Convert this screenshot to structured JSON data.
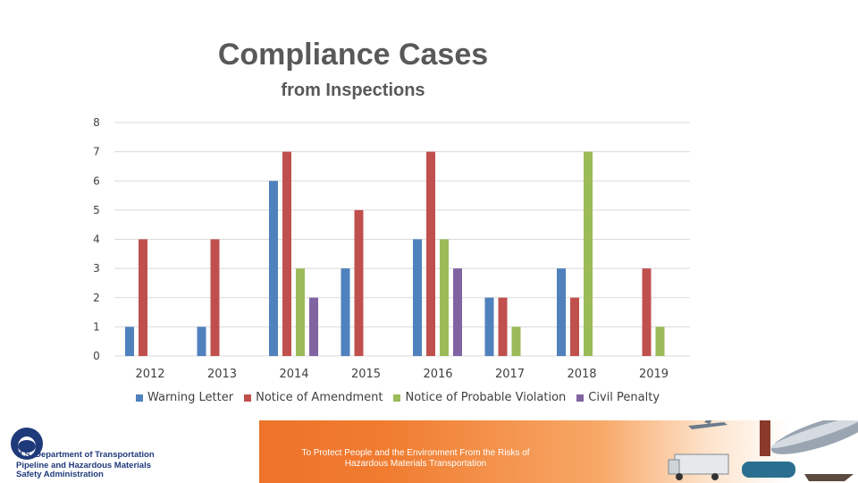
{
  "title": "Compliance Cases",
  "subtitle": "from Inspections",
  "chart_data": {
    "type": "bar",
    "title": "Compliance Cases",
    "subtitle": "from Inspections",
    "categories": [
      "2012",
      "2013",
      "2014",
      "2015",
      "2016",
      "2017",
      "2018",
      "2019"
    ],
    "series": [
      {
        "name": "Warning Letter",
        "color": "#4f81bd",
        "values": [
          1,
          1,
          6,
          3,
          4,
          2,
          3,
          0
        ]
      },
      {
        "name": "Notice of Amendment",
        "color": "#c0504d",
        "values": [
          4,
          4,
          7,
          5,
          7,
          2,
          2,
          3
        ]
      },
      {
        "name": "Notice of Probable Violation",
        "color": "#9bbb59",
        "values": [
          0,
          0,
          3,
          0,
          4,
          1,
          7,
          1
        ]
      },
      {
        "name": "Civil Penalty",
        "color": "#8064a2",
        "values": [
          0,
          0,
          2,
          0,
          3,
          0,
          0,
          0
        ]
      }
    ],
    "yticks": [
      "0",
      "1",
      "2",
      "3",
      "4",
      "5",
      "6",
      "7",
      "8"
    ],
    "ylim": [
      0,
      8
    ],
    "grid": true,
    "legend": "bottom"
  },
  "footer": {
    "dot_name": "U.S. Department of Transportation",
    "phmsa_line1": "Pipeline and Hazardous Materials",
    "phmsa_line2": "Safety Administration",
    "tagline_line1": "To Protect People and the Environment From the Risks of",
    "tagline_line2": "Hazardous Materials Transportation"
  }
}
